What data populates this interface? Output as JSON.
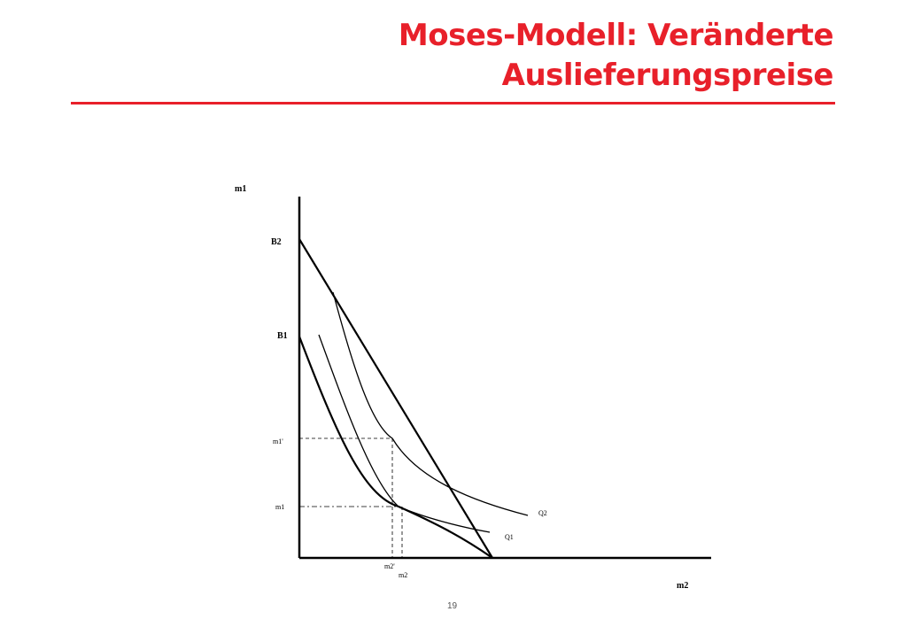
{
  "slide": {
    "title_line1": "Moses-Modell: Veränderte",
    "title_line2": "Auslieferungspreise",
    "title_color": "#e8202a",
    "page_number": "19"
  },
  "diagram": {
    "axis_y_label": "m1",
    "axis_x_label": "m2",
    "intercept_high": "B2",
    "intercept_low": "B1",
    "y_tick_upper": "m1'",
    "y_tick_lower": "m1",
    "x_tick_left": "m2'",
    "x_tick_right": "m2",
    "curve_upper": "Q2",
    "curve_lower": "Q1"
  }
}
